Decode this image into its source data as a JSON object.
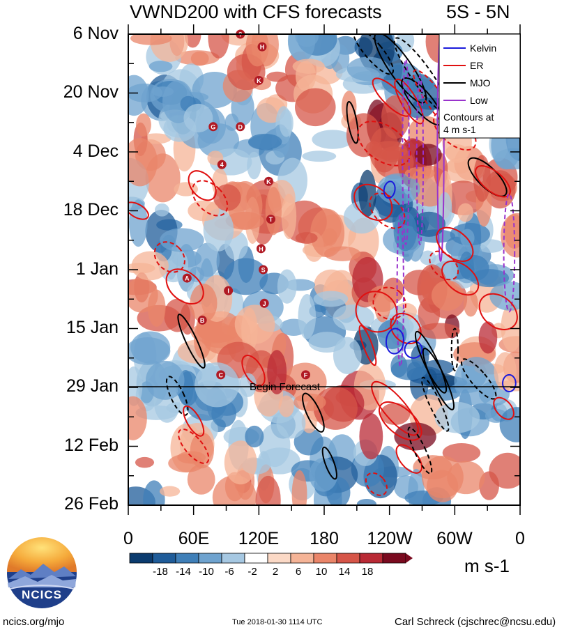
{
  "chart_data": {
    "type": "heatmap",
    "title": "VWND200 with CFS forecasts",
    "region": "5S - 5N",
    "x_tick_labels": [
      "0",
      "60E",
      "120E",
      "180",
      "120W",
      "60W",
      "0"
    ],
    "y_tick_labels": [
      "6 Nov",
      "20 Nov",
      "4 Dec",
      "18 Dec",
      "1 Jan",
      "15 Jan",
      "29 Jan",
      "12 Feb",
      "26 Feb"
    ],
    "xlim_deg_east": [
      0,
      360
    ],
    "ylim_days_from_6_Nov": [
      0,
      112
    ],
    "forecast_start": "29 Jan",
    "forecast_label": "Begin Forecast",
    "colorbar": {
      "unit": "m s-1",
      "tick_labels": [
        "-18",
        "-14",
        "-10",
        "-6",
        "-2",
        "2",
        "6",
        "10",
        "14",
        "18"
      ],
      "colors": [
        "#0b3b6e",
        "#1f5c99",
        "#3f7fb8",
        "#6fa3cf",
        "#a6c8e2",
        "#d6e6f2",
        "#ffffff",
        "#fbd9c6",
        "#f5b497",
        "#ea8569",
        "#d65548",
        "#b92a35",
        "#7a0a1f"
      ]
    },
    "legend": {
      "items": [
        {
          "label": "Kelvin",
          "color": "#1a1adb"
        },
        {
          "label": "ER",
          "color": "#e01010"
        },
        {
          "label": "MJO",
          "color": "#000000"
        },
        {
          "label": "Low",
          "color": "#9933cc"
        }
      ],
      "note_line1": "Contours at",
      "note_line2": "4 m s-1",
      "placement": "top-right"
    },
    "grid": false
  },
  "storm_markers": [
    "?",
    "H",
    "K",
    "G",
    "D",
    "4",
    "K",
    "T",
    "H",
    "S",
    "A",
    "I",
    "J",
    "B",
    "C",
    "F"
  ],
  "footer": {
    "logo_text": "NCICS",
    "url": "ncics.org/mjo",
    "timestamp": "Tue 2018-01-30 1114 UTC",
    "author": "Carl Schreck (cjschrec@ncsu.edu)"
  }
}
